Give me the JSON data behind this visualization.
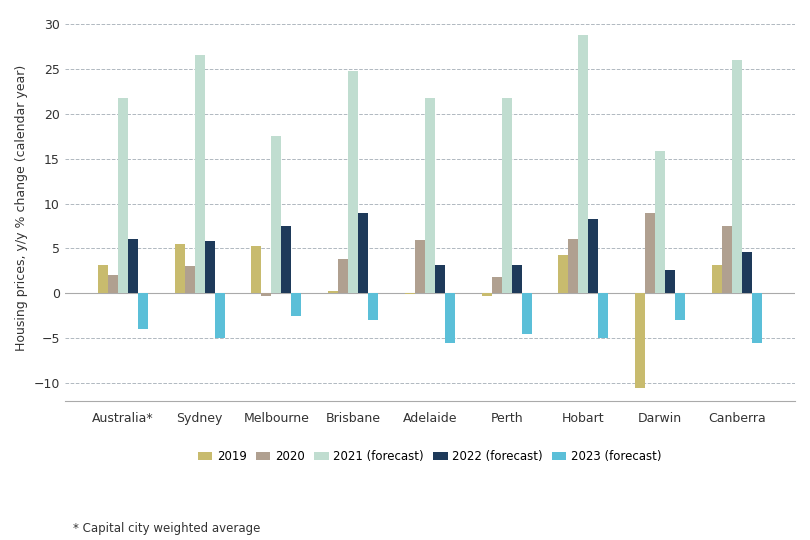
{
  "categories": [
    "Australia*",
    "Sydney",
    "Melbourne",
    "Brisbane",
    "Adelaide",
    "Perth",
    "Hobart",
    "Darwin",
    "Canberra"
  ],
  "series": {
    "2019": [
      3.2,
      5.5,
      5.3,
      0.3,
      -0.1,
      -0.3,
      4.3,
      -10.5,
      3.2
    ],
    "2020": [
      2.0,
      3.0,
      -0.3,
      3.8,
      5.9,
      1.8,
      6.1,
      9.0,
      7.5
    ],
    "2021 (forecast)": [
      21.8,
      26.5,
      17.5,
      24.8,
      21.8,
      21.7,
      28.8,
      15.8,
      26.0
    ],
    "2022 (forecast)": [
      6.1,
      5.8,
      7.5,
      9.0,
      3.2,
      3.2,
      8.3,
      2.6,
      4.6
    ],
    "2023 (forecast)": [
      -4.0,
      -5.0,
      -2.5,
      -3.0,
      -5.5,
      -4.5,
      -5.0,
      -3.0,
      -5.5
    ]
  },
  "colors": {
    "2019": "#c8bb6e",
    "2020": "#b0a090",
    "2021 (forecast)": "#c0ddd0",
    "2022 (forecast)": "#1e3a5a",
    "2023 (forecast)": "#5bbfd8"
  },
  "ylabel": "Housing prices, y/y % change (calendar year)",
  "ylim": [
    -12,
    31
  ],
  "yticks": [
    -10,
    -5,
    0,
    5,
    10,
    15,
    20,
    25,
    30
  ],
  "legend_labels": [
    "2019",
    "2020",
    "2021 (forecast)",
    "2022 (forecast)",
    "2023 (forecast)"
  ],
  "footnote": "* Capital city weighted average",
  "background_color": "#ffffff",
  "grid_color": "#b0b8c0"
}
